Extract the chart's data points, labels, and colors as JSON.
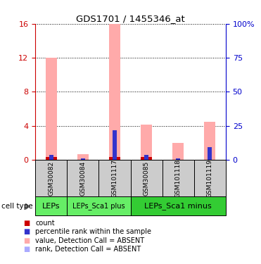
{
  "title": "GDS1701 / 1455346_at",
  "samples": [
    "GSM30082",
    "GSM30084",
    "GSM101117",
    "GSM30085",
    "GSM101118",
    "GSM101119"
  ],
  "pink_values": [
    12.0,
    0.65,
    16.0,
    4.1,
    2.0,
    4.5
  ],
  "red_values": [
    0.28,
    0.0,
    0.28,
    0.28,
    0.0,
    0.0
  ],
  "blue_rank_values": [
    0.55,
    0.12,
    3.5,
    0.55,
    0.12,
    1.5
  ],
  "light_blue_values": [
    0.0,
    0.0,
    0.0,
    0.0,
    0.0,
    0.0
  ],
  "ylim_left": [
    0,
    16
  ],
  "ylim_right": [
    0,
    100
  ],
  "yticks_left": [
    0,
    4,
    8,
    12,
    16
  ],
  "yticks_right": [
    0,
    25,
    50,
    75,
    100
  ],
  "yticklabels_right": [
    "0",
    "25",
    "50",
    "75",
    "100%"
  ],
  "groups": [
    {
      "label": "LEPs",
      "span": [
        0,
        0
      ],
      "color": "#66ee66"
    },
    {
      "label": "LEPs_Sca1 plus",
      "span": [
        1,
        2
      ],
      "color": "#66ee66"
    },
    {
      "label": "LEPs_Sca1 minus",
      "span": [
        3,
        5
      ],
      "color": "#33cc33"
    }
  ],
  "cell_type_label": "cell type",
  "bar_width": 0.35,
  "pink_color": "#ffaaaa",
  "red_color": "#cc0000",
  "blue_color": "#3333cc",
  "light_blue_color": "#aaaaff",
  "sample_area_color": "#cccccc",
  "left_axis_color": "#cc0000",
  "right_axis_color": "#0000cc",
  "legend_items": [
    {
      "color": "#cc0000",
      "label": "count"
    },
    {
      "color": "#3333cc",
      "label": "percentile rank within the sample"
    },
    {
      "color": "#ffaaaa",
      "label": "value, Detection Call = ABSENT"
    },
    {
      "color": "#aaaaff",
      "label": "rank, Detection Call = ABSENT"
    }
  ]
}
